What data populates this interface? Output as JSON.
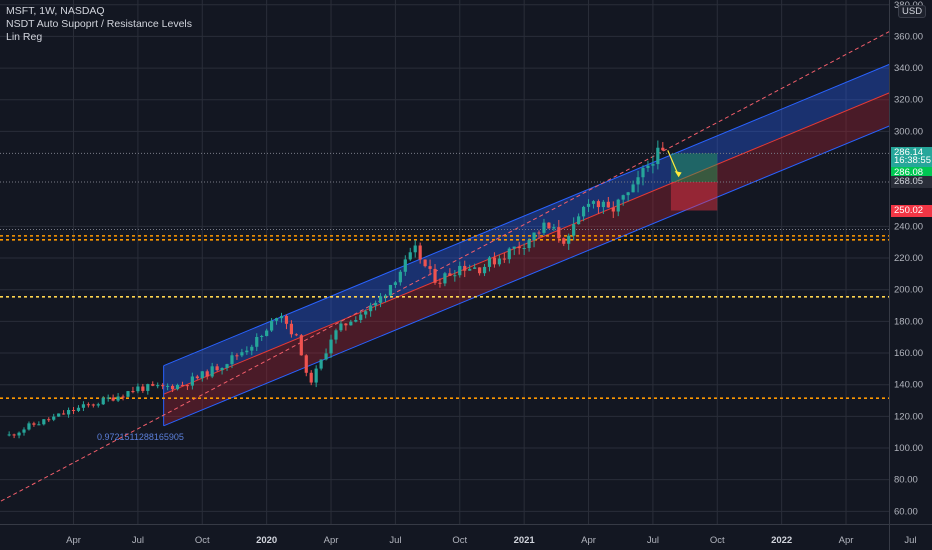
{
  "header": {
    "symbol_line": "MSFT, 1W, NASDAQ",
    "indicator_1": "NSDT Auto Supoprt / Resistance Levels",
    "indicator_2": "Lin Reg",
    "currency": "USD"
  },
  "price_tags": [
    {
      "label": "286.14",
      "value": 286.14,
      "bg": "#26a69a",
      "color": "#ffffff"
    },
    {
      "label": "16:38:55",
      "value": 281.5,
      "bg": "#26a69a",
      "color": "#ffffff"
    },
    {
      "label": "286.08",
      "value": 273.9,
      "bg": "#00c853",
      "color": "#ffffff"
    },
    {
      "label": "268.05",
      "value": 268.05,
      "bg": "#2a2e39",
      "color": "#d1d4dc"
    },
    {
      "label": "250.02",
      "value": 250.02,
      "bg": "#f23645",
      "color": "#ffffff"
    }
  ],
  "chart_data": {
    "type": "candlestick",
    "symbol": "MSFT",
    "interval": "1W",
    "exchange": "NASDAQ",
    "y_axis": {
      "side": "right",
      "ylim": [
        52,
        383
      ],
      "ticks": [
        {
          "value": 60,
          "label": "60.00"
        },
        {
          "value": 80,
          "label": "80.00"
        },
        {
          "value": 100,
          "label": "100.00"
        },
        {
          "value": 120,
          "label": "120.00"
        },
        {
          "value": 140,
          "label": "140.00"
        },
        {
          "value": 160,
          "label": "160.00"
        },
        {
          "value": 180,
          "label": "180.00"
        },
        {
          "value": 200,
          "label": "200.00"
        },
        {
          "value": 220,
          "label": "220.00"
        },
        {
          "value": 240,
          "label": "240.00"
        },
        {
          "value": 300,
          "label": "300.00"
        },
        {
          "value": 320,
          "label": "320.00"
        },
        {
          "value": 340,
          "label": "340.00"
        },
        {
          "value": 360,
          "label": "360.00"
        },
        {
          "value": 380,
          "label": "380.00"
        }
      ]
    },
    "x_axis": {
      "ticks": [
        {
          "t": 2018.25,
          "label": "Apr",
          "bold": false
        },
        {
          "t": 2018.5,
          "label": "Jul",
          "bold": false
        },
        {
          "t": 2018.75,
          "label": "Oct",
          "bold": false
        },
        {
          "t": 2019.0,
          "label": "2020",
          "bold": true
        },
        {
          "t": 2019.25,
          "label": "Apr",
          "bold": false
        },
        {
          "t": 2019.5,
          "label": "Jul",
          "bold": false
        },
        {
          "t": 2019.75,
          "label": "Oct",
          "bold": false
        },
        {
          "t": 2020.0,
          "label": "2021",
          "bold": true
        },
        {
          "t": 2020.25,
          "label": "Apr",
          "bold": false
        },
        {
          "t": 2020.5,
          "label": "Jul",
          "bold": false
        },
        {
          "t": 2020.75,
          "label": "Oct",
          "bold": false
        },
        {
          "t": 2021.0,
          "label": "2022",
          "bold": true
        },
        {
          "t": 2021.25,
          "label": "Apr",
          "bold": false
        },
        {
          "t": 2021.5,
          "label": "Jul",
          "bold": false
        }
      ]
    },
    "grid": true,
    "price_series_points": [
      [
        2018.0,
        108
      ],
      [
        2018.08,
        114
      ],
      [
        2018.17,
        119
      ],
      [
        2018.25,
        124
      ],
      [
        2018.33,
        128
      ],
      [
        2018.42,
        133
      ],
      [
        2018.5,
        138
      ],
      [
        2018.58,
        138
      ],
      [
        2018.67,
        140
      ],
      [
        2018.75,
        146
      ],
      [
        2018.83,
        153
      ],
      [
        2018.92,
        163
      ],
      [
        2019.0,
        173
      ],
      [
        2019.05,
        188
      ],
      [
        2019.08,
        178
      ],
      [
        2019.13,
        165
      ],
      [
        2019.16,
        140
      ],
      [
        2019.2,
        150
      ],
      [
        2019.25,
        170
      ],
      [
        2019.33,
        182
      ],
      [
        2019.42,
        190
      ],
      [
        2019.5,
        208
      ],
      [
        2019.58,
        225
      ],
      [
        2019.63,
        210
      ],
      [
        2019.67,
        206
      ],
      [
        2019.75,
        215
      ],
      [
        2019.83,
        214
      ],
      [
        2019.92,
        222
      ],
      [
        2020.0,
        230
      ],
      [
        2020.08,
        240
      ],
      [
        2020.13,
        235
      ],
      [
        2020.17,
        230
      ],
      [
        2020.25,
        258
      ],
      [
        2020.33,
        249
      ],
      [
        2020.42,
        262
      ],
      [
        2020.5,
        284
      ],
      [
        2020.55,
        286
      ]
    ],
    "regression_channel": {
      "start_t": 2018.6,
      "end_t": 2021.65,
      "upper": [
        152,
        358
      ],
      "middle": [
        134,
        340
      ],
      "lower": [
        114,
        319
      ],
      "coefficient_label": "0.9721511288165905"
    },
    "dashed_trend_line": {
      "from": [
        2017.8,
        52
      ],
      "to": [
        2021.65,
        383
      ]
    },
    "support_resistance_levels": [
      {
        "value": 131.5,
        "color": "#ff9800"
      },
      {
        "value": 195.5,
        "color": "#ffd54f"
      },
      {
        "value": 231.5,
        "color": "#ff9800"
      },
      {
        "value": 234,
        "color": "#ff9800"
      }
    ],
    "dotted_price_lines": [
      286.14,
      268.05,
      238
    ],
    "long_position": {
      "t_start": 2020.57,
      "t_end": 2020.75,
      "entry": 268.05,
      "target": 286.08,
      "stop": 250.02
    }
  }
}
